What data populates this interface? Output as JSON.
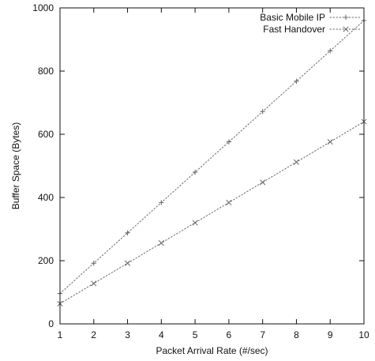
{
  "chart_data": {
    "type": "line",
    "title": "",
    "xlabel": "Packet Arrival Rate (#/sec)",
    "ylabel": "Buffer Space (Bytes)",
    "xlim": [
      1,
      10
    ],
    "ylim": [
      0,
      1000
    ],
    "x_ticks": [
      1,
      2,
      3,
      4,
      5,
      6,
      7,
      8,
      9,
      10
    ],
    "y_ticks": [
      0,
      200,
      400,
      600,
      800,
      1000
    ],
    "grid": false,
    "legend_position": "top-right",
    "series": [
      {
        "name": "Basic Mobile IP",
        "marker": "plus",
        "color": "#666666",
        "x": [
          1,
          2,
          3,
          4,
          5,
          6,
          7,
          8,
          9,
          10
        ],
        "y": [
          96,
          192,
          288,
          384,
          480,
          576,
          672,
          768,
          864,
          960
        ]
      },
      {
        "name": "Fast Handover",
        "marker": "cross",
        "color": "#666666",
        "x": [
          1,
          2,
          3,
          4,
          5,
          6,
          7,
          8,
          9,
          10
        ],
        "y": [
          64,
          128,
          192,
          256,
          320,
          384,
          448,
          512,
          576,
          640
        ]
      }
    ]
  }
}
